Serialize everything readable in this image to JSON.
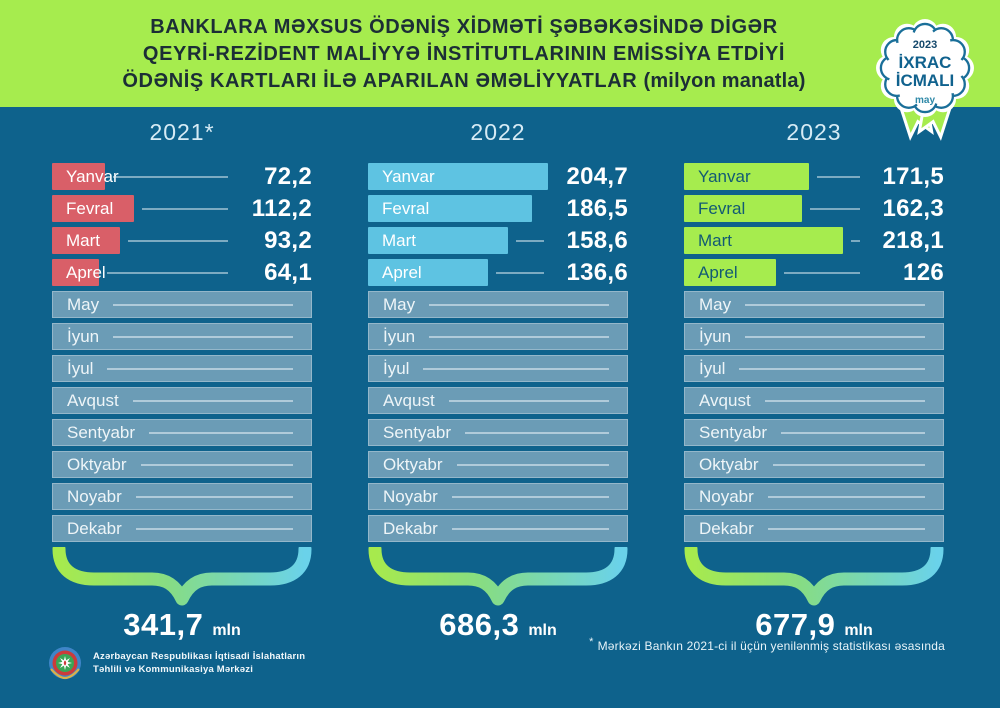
{
  "header": {
    "title_line1": "BANKLARA MƏXSUS ÖDƏNİŞ XİDMƏTİ ŞƏBƏKƏSİNDƏ DİGƏR",
    "title_line2": "QEYRİ-REZİDENT MALİYYƏ İNSTİTUTLARININ EMİSSİYA ETDİYİ",
    "title_line3_main": "ÖDƏNİŞ KARTLARI İLƏ APARILAN ƏMƏLİYYATLAR",
    "title_line3_suffix": "(milyon manatla)"
  },
  "badge": {
    "year": "2023",
    "line1": "İXRAC",
    "line2": "İCMALI",
    "month": "may"
  },
  "chart_data": {
    "type": "bar",
    "orientation": "horizontal",
    "unit_suffix": "mln",
    "categories": [
      "Yanvar",
      "Fevral",
      "Mart",
      "Aprel",
      "May",
      "İyun",
      "İyul",
      "Avqust",
      "Sentyabr",
      "Oktyabr",
      "Noyabr",
      "Dekabr"
    ],
    "series": [
      {
        "year_label": "2021*",
        "bar_color": "#d95f68",
        "bar_text_color": "#ffffff",
        "values": [
          72.2,
          112.2,
          93.2,
          64.1
        ],
        "value_labels": [
          "72,2",
          "112,2",
          "93,2",
          "64,1"
        ],
        "total_value": 341.7,
        "total_label": "341,7"
      },
      {
        "year_label": "2022",
        "bar_color": "#5ec3e2",
        "bar_text_color": "#ffffff",
        "values": [
          204.7,
          186.5,
          158.6,
          136.6
        ],
        "value_labels": [
          "204,7",
          "186,5",
          "158,6",
          "136,6"
        ],
        "total_value": 686.3,
        "total_label": "686,3"
      },
      {
        "year_label": "2023",
        "bar_color": "#a6ec4e",
        "bar_text_color": "#125a74",
        "values": [
          171.5,
          162.3,
          218.1,
          126
        ],
        "value_labels": [
          "171,5",
          "162,3",
          "218,1",
          "126"
        ],
        "total_value": 677.9,
        "total_label": "677,9"
      }
    ],
    "colors": {
      "background": "#0e628c",
      "header_band": "#a6ec4e",
      "empty_bar": "#6b9cb6",
      "brace_gradient": [
        "#a7ea4d",
        "#86dc85",
        "#6ad2ea"
      ]
    }
  },
  "footnote": {
    "marker": "*",
    "text": "Mərkəzi Bankın 2021-ci il üçün yenilənmiş statistikası əsasında"
  },
  "footer": {
    "org_line1": "Azərbaycan Respublikası İqtisadi İslahatların",
    "org_line2": "Təhlili və Kommunikasiya Mərkəzi"
  }
}
